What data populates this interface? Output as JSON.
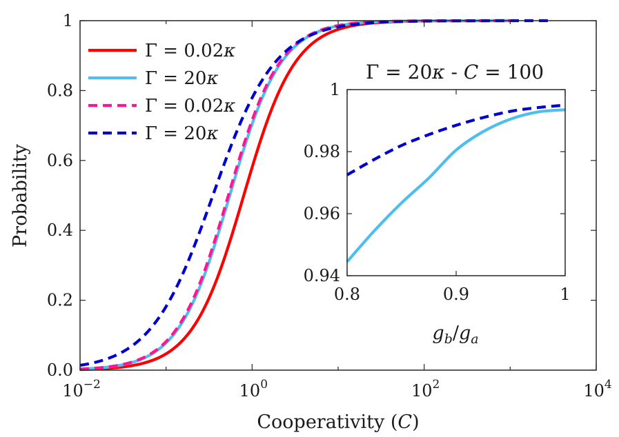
{
  "chart_data": [
    {
      "type": "line",
      "id": "main",
      "xscale": "log",
      "xlim": [
        0.01,
        10000
      ],
      "ylim": [
        0,
        1
      ],
      "xlabel_text": "Cooperativity (",
      "xlabel_symbol": "C",
      "xlabel_close": ")",
      "ylabel": "Probability",
      "x_ticks": [
        {
          "value": 0.01,
          "base": "10",
          "exp": "−2"
        },
        {
          "value": 1,
          "base": "10",
          "exp": "0"
        },
        {
          "value": 100,
          "base": "10",
          "exp": "2"
        },
        {
          "value": 10000,
          "base": "10",
          "exp": "4"
        }
      ],
      "y_ticks": [
        {
          "value": 0,
          "label": "0.0"
        },
        {
          "value": 0.2,
          "label": "0.2"
        },
        {
          "value": 0.4,
          "label": "0.4"
        },
        {
          "value": 0.6,
          "label": "0.6"
        },
        {
          "value": 0.8,
          "label": "0.8"
        },
        {
          "value": 1,
          "label": "1"
        }
      ],
      "legend_position": "top-left",
      "series": [
        {
          "name": "Γ = 0.02κ",
          "color": "#ff0000",
          "style": "solid",
          "C50": 0.8,
          "n": 1.45,
          "xmax": 1000
        },
        {
          "name": "Γ = 20κ",
          "color": "#4dbeee",
          "style": "solid",
          "C50": 0.55,
          "n": 1.45,
          "xmax": 1000
        },
        {
          "name": "Γ = 0.02κ",
          "color": "#ff1493",
          "style": "dashed",
          "C50": 0.53,
          "n": 1.45,
          "xmax": 1000
        },
        {
          "name": "Γ = 20κ",
          "color": "#0000cd",
          "style": "dashed",
          "C50": 0.35,
          "n": 1.2,
          "xmax": 3000
        }
      ],
      "legend": [
        {
          "lhs": "Γ",
          "eq": " = ",
          "num": "0.02",
          "var": "κ",
          "color": "#ff0000",
          "style": "solid"
        },
        {
          "lhs": "Γ",
          "eq": " = ",
          "num": "20",
          "var": "κ",
          "color": "#4dbeee",
          "style": "solid"
        },
        {
          "lhs": "Γ",
          "eq": " = ",
          "num": "0.02",
          "var": "κ",
          "color": "#ff1493",
          "style": "dashed"
        },
        {
          "lhs": "Γ",
          "eq": " = ",
          "num": "20",
          "var": "κ",
          "color": "#0000cd",
          "style": "dashed"
        }
      ]
    },
    {
      "type": "line",
      "id": "inset",
      "title_parts": [
        "Γ",
        " = 20",
        "κ",
        " - ",
        "C",
        " = 100"
      ],
      "xlabel_parts": [
        "g",
        "b",
        "/",
        "g",
        "a"
      ],
      "xlim": [
        0.8,
        1.0
      ],
      "ylim": [
        0.94,
        1.0
      ],
      "x_ticks": [
        {
          "value": 0.8,
          "label": "0.8"
        },
        {
          "value": 0.9,
          "label": "0.9"
        },
        {
          "value": 1.0,
          "label": "1"
        }
      ],
      "y_ticks": [
        {
          "value": 0.94,
          "label": "0.94"
        },
        {
          "value": 0.96,
          "label": "0.96"
        },
        {
          "value": 0.98,
          "label": "0.98"
        },
        {
          "value": 1.0,
          "label": "1"
        }
      ],
      "series": [
        {
          "name": "Γ = 20κ (solid)",
          "color": "#4dbeee",
          "style": "solid",
          "x": [
            0.8,
            0.825,
            0.85,
            0.875,
            0.9,
            0.925,
            0.95,
            0.975,
            1.0
          ],
          "y": [
            0.9445,
            0.9545,
            0.9635,
            0.9715,
            0.9805,
            0.9865,
            0.9905,
            0.9928,
            0.9935
          ]
        },
        {
          "name": "Γ = 20κ (dashed)",
          "color": "#0000cd",
          "style": "dashed",
          "x": [
            0.8,
            0.825,
            0.85,
            0.875,
            0.9,
            0.925,
            0.95,
            0.975,
            1.0
          ],
          "y": [
            0.9725,
            0.9775,
            0.982,
            0.9855,
            0.9885,
            0.991,
            0.993,
            0.9942,
            0.995
          ]
        }
      ]
    }
  ]
}
